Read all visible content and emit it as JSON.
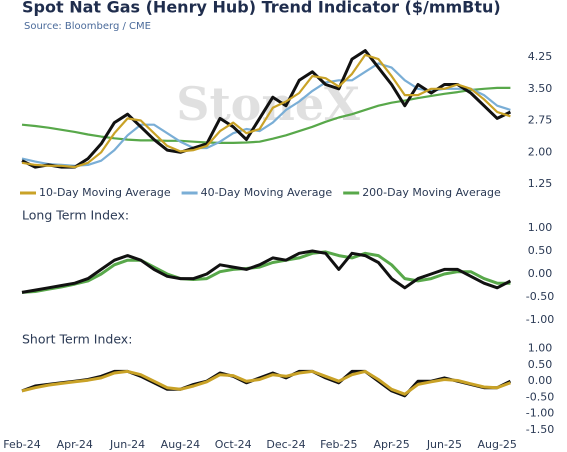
{
  "chart_data": {
    "type": "line",
    "title": "Spot Nat Gas (Henry Hub) Trend Indicator ($/mmBtu)",
    "source": "Source: Bloomberg / CME",
    "watermark": "StoneX",
    "categories": [
      "Feb-24",
      null,
      null,
      null,
      "Apr-24",
      null,
      null,
      null,
      "Jun-24",
      null,
      null,
      null,
      "Aug-24",
      null,
      null,
      null,
      "Oct-24",
      null,
      null,
      null,
      "Dec-24",
      null,
      null,
      null,
      "Feb-25",
      null,
      null,
      null,
      "Apr-25",
      null,
      null,
      null,
      "Jun-25",
      null,
      null,
      null,
      "Aug-25",
      null
    ],
    "panels": [
      {
        "ylim": [
          1.25,
          4.55
        ],
        "yticks": [
          1.25,
          {
            "value": 2.0,
            "label": "2.00"
          },
          2.75,
          {
            "value": 3.5,
            "label": "3.50"
          },
          4.25
        ],
        "series": [
          {
            "color": "#58a84a",
            "name": "200-Day Moving Average",
            "values": [
              2.65,
              2.62,
              2.58,
              2.53,
              2.48,
              2.42,
              2.37,
              2.33,
              2.3,
              2.28,
              2.28,
              2.27,
              2.27,
              2.25,
              2.23,
              2.22,
              2.22,
              2.23,
              2.25,
              2.32,
              2.4,
              2.5,
              2.6,
              2.72,
              2.82,
              2.9,
              3.0,
              3.1,
              3.17,
              3.22,
              3.28,
              3.33,
              3.38,
              3.42,
              3.47,
              3.5,
              3.52,
              3.52
            ]
          },
          {
            "color": "#7aaed6",
            "name": "40-Day Moving Average",
            "values": [
              1.85,
              1.78,
              1.72,
              1.7,
              1.68,
              1.7,
              1.8,
              2.05,
              2.4,
              2.65,
              2.65,
              2.45,
              2.25,
              2.1,
              2.1,
              2.25,
              2.45,
              2.55,
              2.5,
              2.7,
              3.0,
              3.2,
              3.45,
              3.65,
              3.7,
              3.7,
              3.9,
              4.1,
              4.0,
              3.7,
              3.5,
              3.45,
              3.5,
              3.5,
              3.5,
              3.35,
              3.1,
              3.0
            ]
          },
          {
            "color": "#111111",
            "values": [
              1.8,
              1.65,
              1.7,
              1.65,
              1.65,
              1.85,
              2.2,
              2.7,
              2.9,
              2.6,
              2.3,
              2.05,
              2.0,
              2.1,
              2.2,
              2.8,
              2.6,
              2.3,
              2.8,
              3.3,
              3.1,
              3.7,
              3.9,
              3.6,
              3.5,
              4.2,
              4.4,
              4.0,
              3.6,
              3.1,
              3.6,
              3.4,
              3.6,
              3.6,
              3.4,
              3.1,
              2.8,
              2.95
            ]
          },
          {
            "color": "#c9a227",
            "name": "10-Day Moving Average",
            "values": [
              1.75,
              1.7,
              1.68,
              1.68,
              1.65,
              1.75,
              2.0,
              2.45,
              2.8,
              2.75,
              2.45,
              2.15,
              2.02,
              2.05,
              2.15,
              2.5,
              2.7,
              2.45,
              2.55,
              3.05,
              3.2,
              3.4,
              3.8,
              3.75,
              3.55,
              3.85,
              4.3,
              4.2,
              3.8,
              3.35,
              3.35,
              3.5,
              3.5,
              3.6,
              3.5,
              3.25,
              2.95,
              2.85
            ]
          }
        ],
        "legend_order": [
          3,
          1,
          0
        ]
      },
      {
        "title": "Long Term Index:",
        "ylim": [
          -1.05,
          1.05
        ],
        "yticks": [
          {
            "value": -1,
            "label": "-1.00"
          },
          {
            "value": -0.5,
            "label": "-0.50"
          },
          {
            "value": 0,
            "label": "0.00"
          },
          {
            "value": 0.5,
            "label": "0.50"
          },
          {
            "value": 1,
            "label": "1.00"
          }
        ],
        "series": [
          {
            "color": "#58a84a",
            "values": [
              -0.4,
              -0.38,
              -0.33,
              -0.28,
              -0.22,
              -0.15,
              0.0,
              0.2,
              0.3,
              0.3,
              0.15,
              0.0,
              -0.1,
              -0.12,
              -0.1,
              0.05,
              0.1,
              0.12,
              0.15,
              0.25,
              0.3,
              0.35,
              0.45,
              0.48,
              0.4,
              0.35,
              0.45,
              0.4,
              0.2,
              -0.1,
              -0.15,
              -0.1,
              0.0,
              0.05,
              0.05,
              -0.1,
              -0.2,
              -0.2
            ]
          },
          {
            "color": "#111111",
            "values": [
              -0.4,
              -0.35,
              -0.3,
              -0.25,
              -0.2,
              -0.1,
              0.1,
              0.3,
              0.4,
              0.3,
              0.1,
              -0.05,
              -0.1,
              -0.1,
              0.0,
              0.2,
              0.15,
              0.1,
              0.2,
              0.35,
              0.3,
              0.45,
              0.5,
              0.45,
              0.1,
              0.45,
              0.4,
              0.25,
              -0.1,
              -0.3,
              -0.1,
              0.0,
              0.1,
              0.1,
              -0.05,
              -0.2,
              -0.3,
              -0.15
            ]
          }
        ]
      },
      {
        "title": "Short Term Index:",
        "ylim": [
          -1.55,
          1.05
        ],
        "yticks": [
          {
            "value": -1.5,
            "label": "-1.50"
          },
          {
            "value": -1,
            "label": "-1.00"
          },
          {
            "value": -0.5,
            "label": "-0.50"
          },
          {
            "value": 0,
            "label": "0.00"
          },
          {
            "value": 0.5,
            "label": "0.50"
          },
          {
            "value": 1,
            "label": "1.00"
          }
        ],
        "series": [
          {
            "color": "#111111",
            "values": [
              -0.3,
              -0.15,
              -0.1,
              -0.05,
              0.0,
              0.05,
              0.15,
              0.3,
              0.3,
              0.15,
              -0.05,
              -0.25,
              -0.25,
              -0.1,
              0.0,
              0.25,
              0.15,
              -0.05,
              0.1,
              0.25,
              0.1,
              0.3,
              0.3,
              0.1,
              -0.05,
              0.3,
              0.3,
              0.0,
              -0.3,
              -0.45,
              0.0,
              0.0,
              0.1,
              0.0,
              -0.1,
              -0.2,
              -0.2,
              0.0
            ]
          },
          {
            "color": "#c9a227",
            "values": [
              -0.3,
              -0.2,
              -0.12,
              -0.07,
              -0.02,
              0.03,
              0.1,
              0.25,
              0.3,
              0.2,
              0.0,
              -0.2,
              -0.25,
              -0.15,
              -0.02,
              0.2,
              0.17,
              0.0,
              0.05,
              0.2,
              0.15,
              0.25,
              0.3,
              0.15,
              0.0,
              0.2,
              0.3,
              0.05,
              -0.25,
              -0.4,
              -0.1,
              -0.02,
              0.05,
              0.02,
              -0.08,
              -0.18,
              -0.2,
              -0.05
            ]
          }
        ]
      }
    ]
  }
}
